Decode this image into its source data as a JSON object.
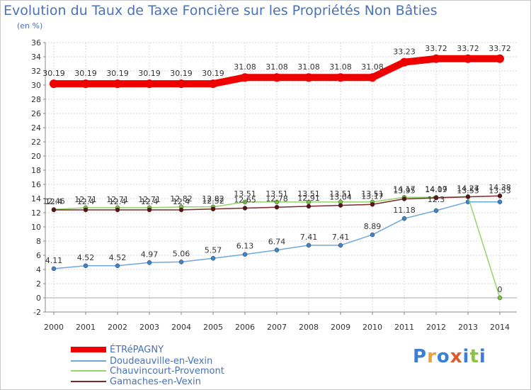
{
  "title": "Evolution du Taux de Taxe Foncière sur les Propriétés Non Bâties",
  "unit_label": "(en %)",
  "logo": {
    "text": "Proxiti",
    "colors": [
      "#3a7fd5",
      "#e8a33c",
      "#3a7fd5",
      "#e05a2b",
      "#3a7fd5",
      "#8bc34a",
      "#3a7fd5"
    ]
  },
  "chart_data": {
    "type": "line",
    "title": "Evolution du Taux de Taxe Foncière sur les Propriétés Non Bâties",
    "xlabel": "",
    "ylabel": "(en %)",
    "x": [
      "2000",
      "2001",
      "2002",
      "2003",
      "2004",
      "2005",
      "2006",
      "2007",
      "2008",
      "2009",
      "2010",
      "2011",
      "2012",
      "2013",
      "2014"
    ],
    "ylim": [
      -2,
      36
    ],
    "yticks": [
      -2,
      0,
      2,
      4,
      6,
      8,
      10,
      12,
      14,
      16,
      18,
      20,
      22,
      24,
      26,
      28,
      30,
      32,
      34,
      36
    ],
    "grid": true,
    "legend_position": "bottom-left",
    "series": [
      {
        "name": "ÉTRéPAGNY",
        "color": "#ee0000",
        "marker": "#ee0000",
        "values": [
          30.19,
          30.19,
          30.19,
          30.19,
          30.19,
          30.19,
          31.08,
          31.08,
          31.08,
          31.08,
          31.08,
          33.23,
          33.72,
          33.72,
          33.72
        ],
        "labels": [
          "30.19",
          "30.19",
          "30.19",
          "30.19",
          "30.19",
          "30.19",
          "31.08",
          "31.08",
          "31.08",
          "31.08",
          "31.08",
          "33.23",
          "33.72",
          "33.72",
          "33.72"
        ]
      },
      {
        "name": "Doudeauville-en-Vexin",
        "color": "#6fa8dc",
        "marker": "#3d85c6",
        "values": [
          4.11,
          4.52,
          4.52,
          4.97,
          5.06,
          5.57,
          6.13,
          6.74,
          7.41,
          7.41,
          8.89,
          11.18,
          12.3,
          13.53,
          13.53
        ],
        "labels": [
          "4.11",
          "4.52",
          "4.52",
          "4.97",
          "5.06",
          "5.57",
          "6.13",
          "6.74",
          "7.41",
          "7.41",
          "8.89",
          "11.18",
          "12.3",
          "13.53",
          "13.53"
        ]
      },
      {
        "name": "Chauvincourt-Provemont",
        "color": "#93d46b",
        "marker": "#7cc243",
        "values": [
          12.46,
          12.71,
          12.71,
          12.71,
          12.82,
          12.82,
          13.51,
          13.51,
          13.51,
          13.51,
          13.51,
          14.17,
          14.17,
          14.27,
          0
        ],
        "labels": [
          "12.46",
          "12.71",
          "12.71",
          "12.71",
          "12.82",
          "12.82",
          "13.51",
          "13.51",
          "13.51",
          "13.51",
          "13.51",
          "14.17",
          "14.17",
          "14.27",
          "0"
        ]
      },
      {
        "name": "Gamaches-en-Vexin",
        "color": "#7a2a2a",
        "marker": "#5c1212",
        "values": [
          12.4,
          12.4,
          12.4,
          12.4,
          12.4,
          12.52,
          12.65,
          12.78,
          12.91,
          13.04,
          13.17,
          13.95,
          14.09,
          14.24,
          14.38
        ],
        "labels": [
          "12.4",
          "12.4",
          "12.4",
          "12.4",
          "12.4",
          "12.52",
          "12.65",
          "12.78",
          "12.91",
          "13.04",
          "13.17",
          "13.95",
          "14.09",
          "14.24",
          "14.38"
        ]
      }
    ]
  }
}
